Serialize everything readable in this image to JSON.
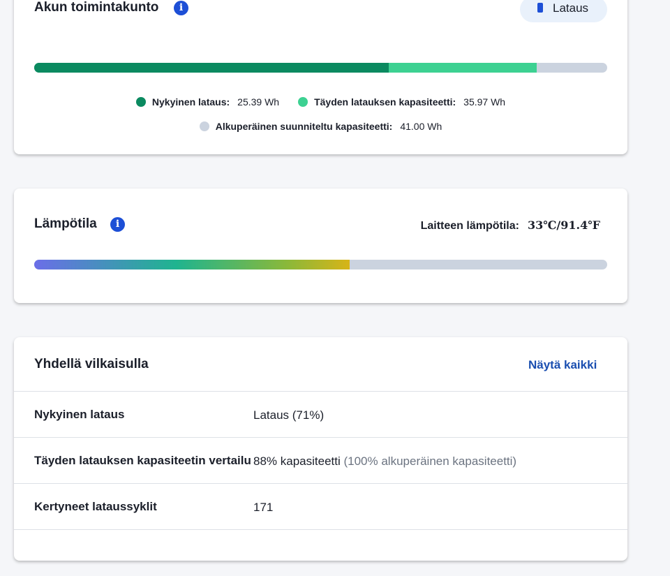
{
  "battery_health": {
    "title": "Akun toimintakunto",
    "status": "Lataus",
    "legend": [
      {
        "label": "Nykyinen lataus:",
        "value": {
          "value": 25.39,
          "label": "25.39 Wh"
        },
        "color": "#0b8a60"
      },
      {
        "label": "Täyden latauksen kapasiteetti:",
        "value": {
          "value": 35.97,
          "label": "35.97 Wh"
        },
        "color": "#3dd192"
      },
      {
        "label": "Alkuperäinen suunniteltu kapasiteetti:",
        "value": {
          "value": 41.0,
          "label": "41.00 Wh"
        },
        "color": "#cbd3df"
      }
    ]
  },
  "temperature": {
    "title": "Lämpötila",
    "label": "Laitteen lämpötila:",
    "value": "33℃/91.4℉"
  },
  "at_a_glance": {
    "title": "Yhdellä vilkaisulla",
    "link": "Näytä kaikki",
    "rows": [
      [
        "Nykyinen lataus",
        "Lataus (71%)"
      ],
      [
        "Täyden latauksen kapasiteetin vertailu",
        "88% kapasiteetti",
        "(100% alkuperäinen kapasiteetti)"
      ],
      [
        "Kertyneet lataussyklit",
        171
      ]
    ]
  }
}
